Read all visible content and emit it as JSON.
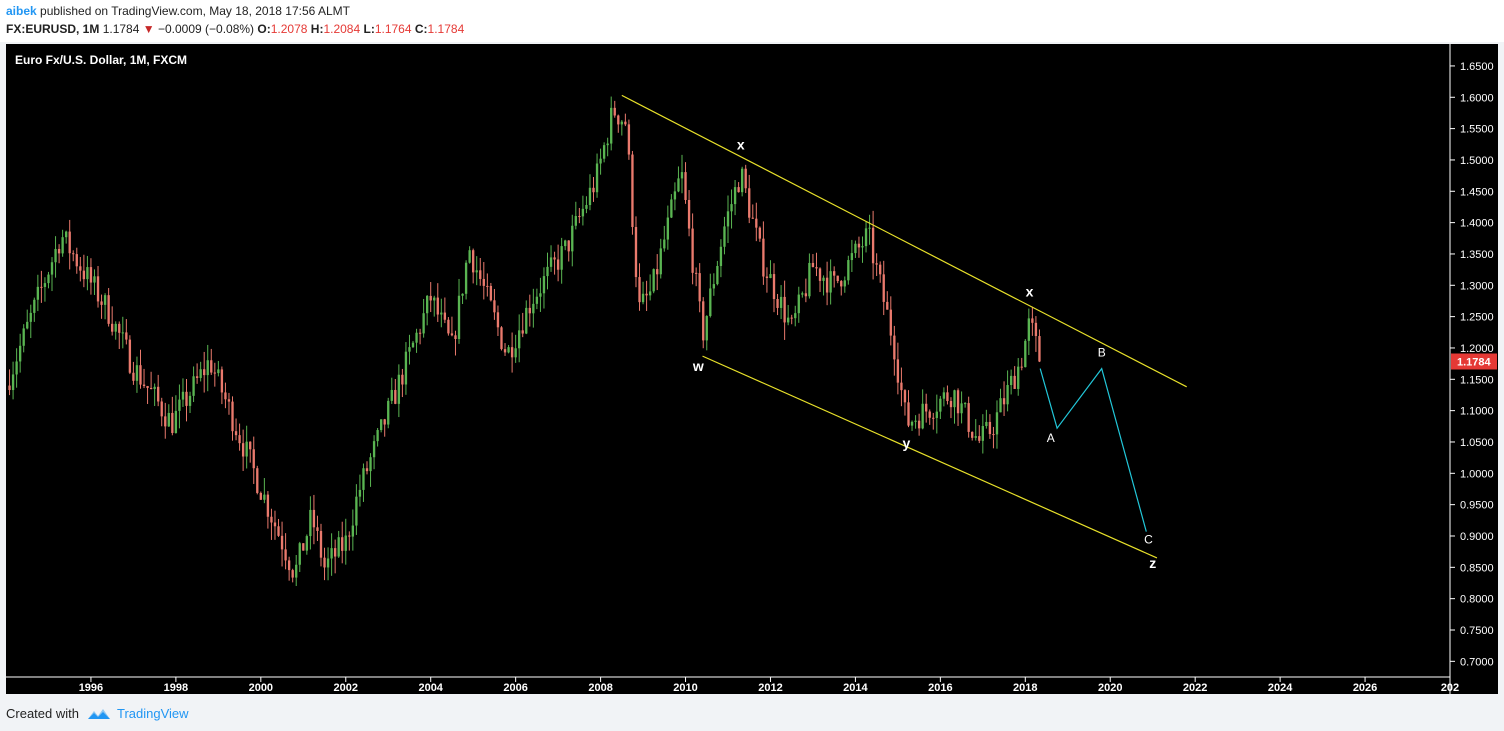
{
  "header": {
    "user": "aibek",
    "published_text": " published on TradingView.com, May 18, 2018 17:56 ALMT",
    "symbol": "FX:EURUSD, 1M",
    "last": "1.1784",
    "change": "−0.0009 (−0.08%)",
    "open_label": "O:",
    "open": "1.2078",
    "high_label": "H:",
    "high": "1.2084",
    "low_label": "L:",
    "low": "1.1764",
    "close_label": "C:",
    "close": "1.1784"
  },
  "footer": {
    "created_with": "Created with",
    "brand": "TradingView"
  },
  "colors": {
    "up": "#5ab552",
    "down": "#ea7a6d",
    "channel": "#e8e12a",
    "projection": "#22c7d9",
    "price_tag": "#e53935"
  },
  "chart_data": {
    "type": "candlestick",
    "title": "Euro Fx/U.S. Dollar, 1M, FXCM",
    "x_ticks": [
      "1996",
      "1998",
      "2000",
      "2002",
      "2004",
      "2006",
      "2008",
      "2010",
      "2012",
      "2014",
      "2016",
      "2018",
      "2020",
      "2022",
      "2024",
      "2026",
      "202"
    ],
    "y_ticks": [
      "1.6500",
      "1.6000",
      "1.5500",
      "1.5000",
      "1.4500",
      "1.4000",
      "1.3500",
      "1.3000",
      "1.2500",
      "1.2000",
      "1.1500",
      "1.1000",
      "1.0500",
      "1.0000",
      "0.9500",
      "0.9000",
      "0.8500",
      "0.8000",
      "0.7500",
      "0.7000"
    ],
    "x_range": [
      1994.0,
      2028.0
    ],
    "y_range": [
      0.675,
      1.685
    ],
    "last_price_tag": "1.1784",
    "anchors": [
      [
        1994.0,
        1.14
      ],
      [
        1995.3,
        1.38
      ],
      [
        1996.4,
        1.26
      ],
      [
        1997.0,
        1.17
      ],
      [
        1997.9,
        1.08
      ],
      [
        1998.8,
        1.18
      ],
      [
        1999.5,
        1.06
      ],
      [
        2000.8,
        0.84
      ],
      [
        2001.2,
        0.93
      ],
      [
        2001.5,
        0.85
      ],
      [
        2002.0,
        0.89
      ],
      [
        2002.3,
        0.97
      ],
      [
        2004.0,
        1.28
      ],
      [
        2004.5,
        1.2
      ],
      [
        2004.9,
        1.36
      ],
      [
        2005.8,
        1.19
      ],
      [
        2006.4,
        1.28
      ],
      [
        2007.2,
        1.36
      ],
      [
        2007.9,
        1.47
      ],
      [
        2008.3,
        1.58
      ],
      [
        2008.6,
        1.56
      ],
      [
        2008.9,
        1.26
      ],
      [
        2009.2,
        1.29
      ],
      [
        2009.9,
        1.48
      ],
      [
        2010.4,
        1.22
      ],
      [
        2010.9,
        1.39
      ],
      [
        2011.3,
        1.48
      ],
      [
        2011.8,
        1.34
      ],
      [
        2012.5,
        1.23
      ],
      [
        2013.0,
        1.33
      ],
      [
        2013.5,
        1.3
      ],
      [
        2014.3,
        1.38
      ],
      [
        2014.9,
        1.21
      ],
      [
        2015.2,
        1.08
      ],
      [
        2016.3,
        1.13
      ],
      [
        2016.9,
        1.05
      ],
      [
        2017.2,
        1.07
      ],
      [
        2017.9,
        1.18
      ],
      [
        2018.1,
        1.24
      ],
      [
        2018.35,
        1.18
      ]
    ],
    "channel": {
      "upper": {
        "x1": 2008.5,
        "y1": 1.603,
        "x2": 2021.8,
        "y2": 1.138
      },
      "lower": {
        "x1": 2010.4,
        "y1": 1.187,
        "x2": 2021.1,
        "y2": 0.865
      }
    },
    "projection": [
      [
        2018.35,
        1.167
      ],
      [
        2018.75,
        1.072
      ],
      [
        2019.8,
        1.167
      ],
      [
        2020.85,
        0.907
      ]
    ],
    "wave_labels": [
      {
        "text": "x",
        "x": 2011.3,
        "y": 1.517
      },
      {
        "text": "w",
        "x": 2010.3,
        "y": 1.163
      },
      {
        "text": "y",
        "x": 2015.2,
        "y": 1.04
      },
      {
        "text": "x",
        "x": 2018.1,
        "y": 1.282
      },
      {
        "text": "A",
        "x": 2018.6,
        "y": 1.05
      },
      {
        "text": "B",
        "x": 2019.8,
        "y": 1.186
      },
      {
        "text": "C",
        "x": 2020.9,
        "y": 0.888
      },
      {
        "text": "z",
        "x": 2021.0,
        "y": 0.849
      }
    ]
  }
}
